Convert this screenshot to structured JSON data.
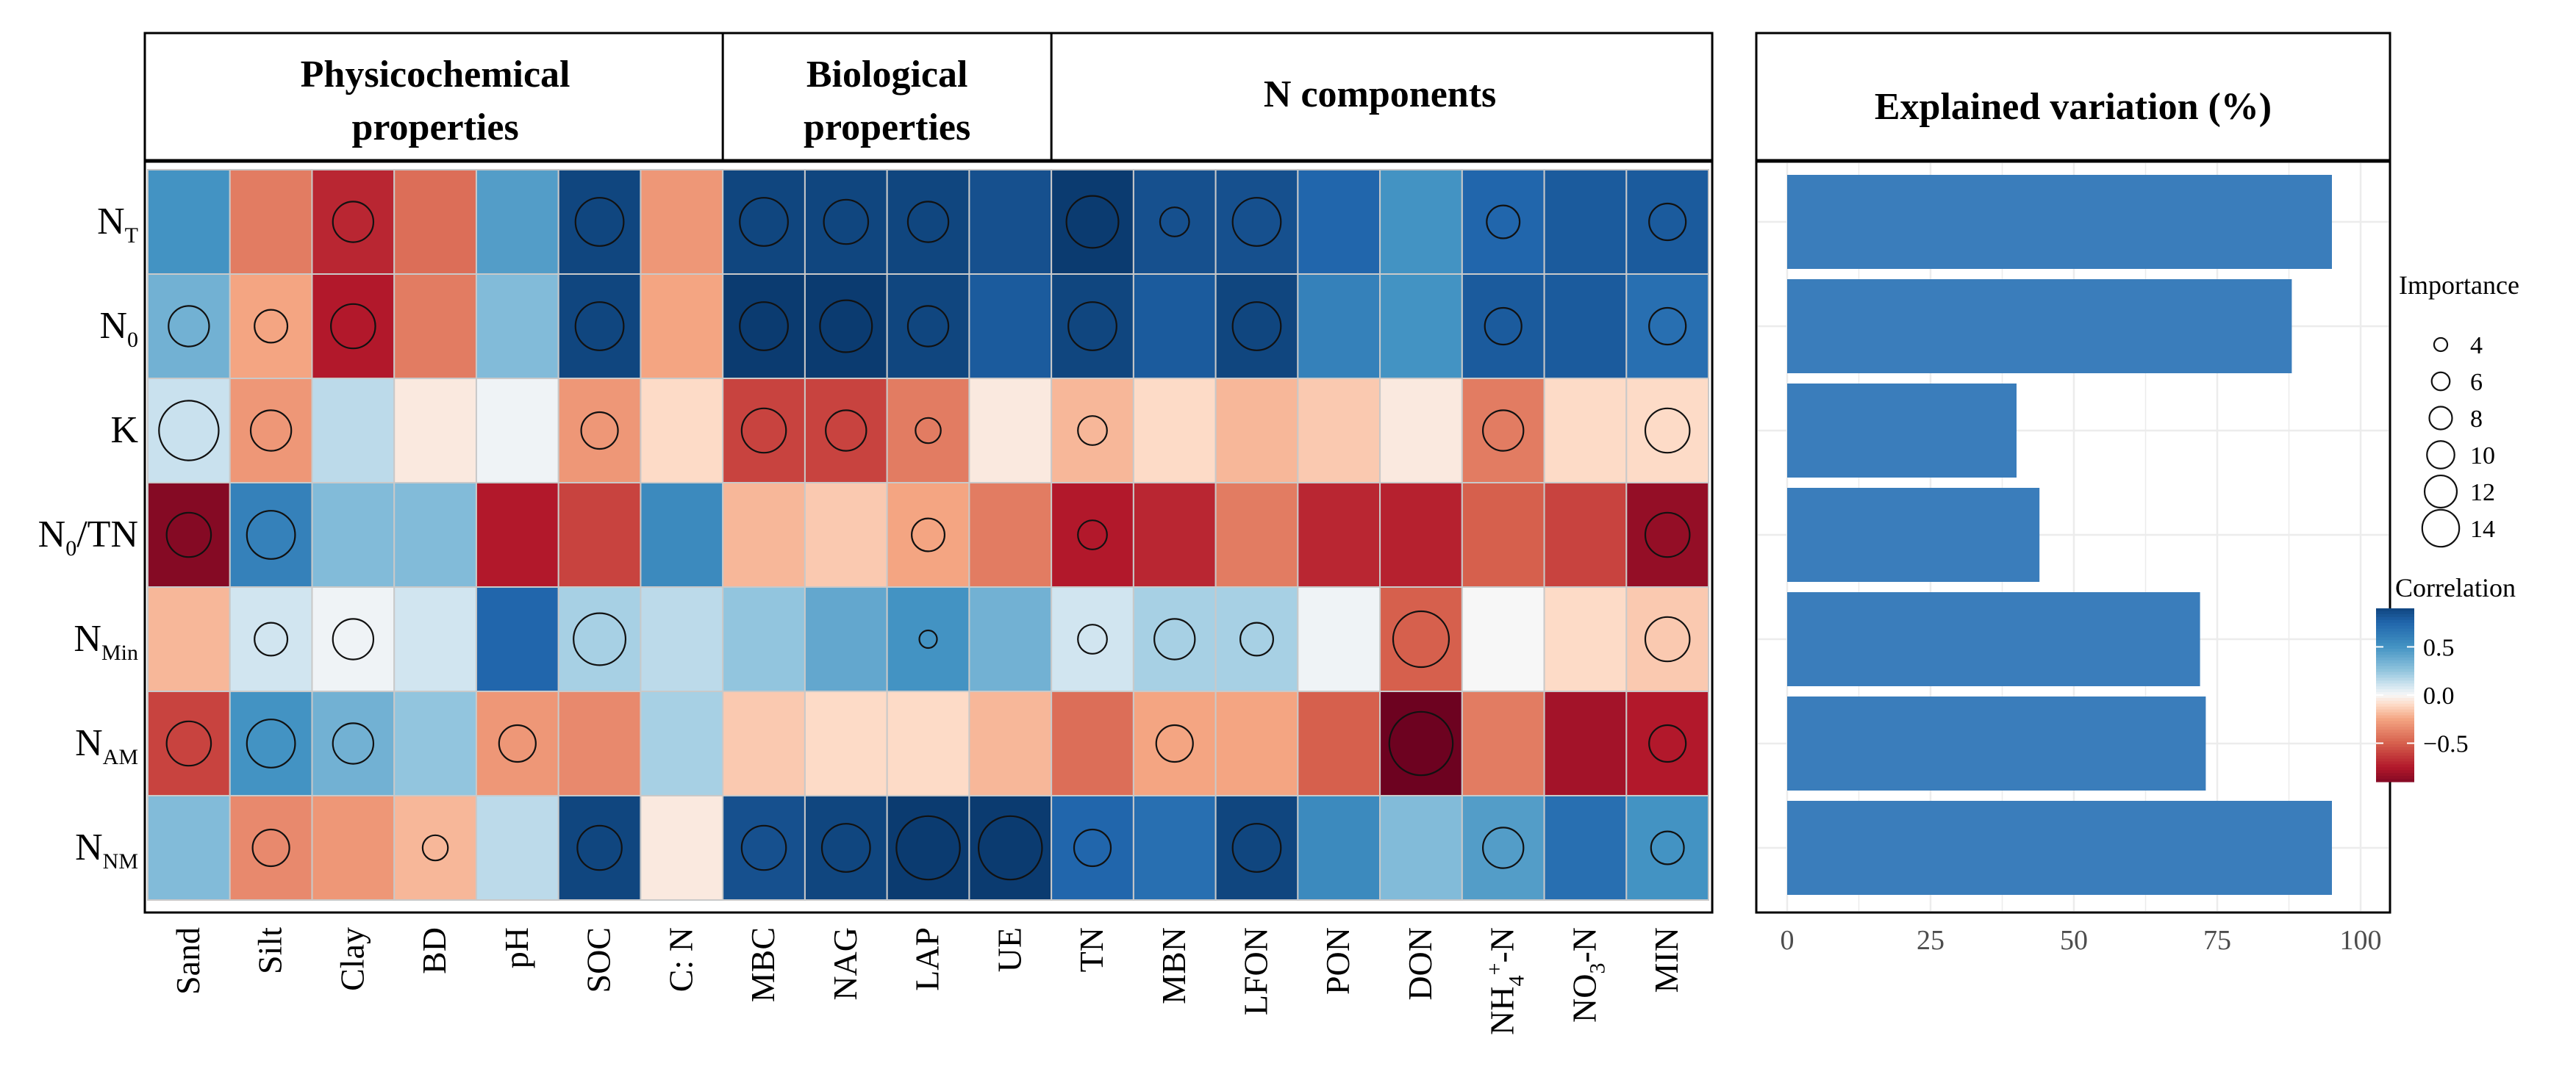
{
  "chart_data": [
    {
      "type": "heatmap",
      "title": "",
      "group_headers": [
        {
          "label_lines": [
            "Physicochemical",
            "properties"
          ],
          "start": 0,
          "end": 7
        },
        {
          "label_lines": [
            "Biological",
            "properties"
          ],
          "start": 7,
          "end": 11
        },
        {
          "label_lines": [
            "N components"
          ],
          "start": 11,
          "end": 19
        }
      ],
      "rows": [
        {
          "base": "N",
          "sub": "T",
          "after": ""
        },
        {
          "base": "N",
          "sub": "0",
          "after": ""
        },
        {
          "base": "K",
          "sub": "",
          "after": ""
        },
        {
          "base": "N",
          "sub": "0",
          "after": "/TN"
        },
        {
          "base": "N",
          "sub": "Min",
          "after": ""
        },
        {
          "base": "N",
          "sub": "AM",
          "after": ""
        },
        {
          "base": "N",
          "sub": "NM",
          "after": ""
        }
      ],
      "columns": [
        {
          "pre": "Sand",
          "sup": "",
          "sub": "",
          "post": ""
        },
        {
          "pre": "Silt",
          "sup": "",
          "sub": "",
          "post": ""
        },
        {
          "pre": "Clay",
          "sup": "",
          "sub": "",
          "post": ""
        },
        {
          "pre": "BD",
          "sup": "",
          "sub": "",
          "post": ""
        },
        {
          "pre": "pH",
          "sup": "",
          "sub": "",
          "post": ""
        },
        {
          "pre": "SOC",
          "sup": "",
          "sub": "",
          "post": ""
        },
        {
          "pre": "C: N",
          "sup": "",
          "sub": "",
          "post": ""
        },
        {
          "pre": "MBC",
          "sup": "",
          "sub": "",
          "post": ""
        },
        {
          "pre": "NAG",
          "sup": "",
          "sub": "",
          "post": ""
        },
        {
          "pre": "LAP",
          "sup": "",
          "sub": "",
          "post": ""
        },
        {
          "pre": "UE",
          "sup": "",
          "sub": "",
          "post": ""
        },
        {
          "pre": "TN",
          "sup": "",
          "sub": "",
          "post": ""
        },
        {
          "pre": "MBN",
          "sup": "",
          "sub": "",
          "post": ""
        },
        {
          "pre": "LFON",
          "sup": "",
          "sub": "",
          "post": ""
        },
        {
          "pre": "PON",
          "sup": "",
          "sub": "",
          "post": ""
        },
        {
          "pre": "DON",
          "sup": "",
          "sub": "",
          "post": ""
        },
        {
          "pre": "NH",
          "sup": "4",
          "sub": "+",
          "post": "-N"
        },
        {
          "pre": "NO",
          "sup": "",
          "sub": "3",
          "post": "-N"
        },
        {
          "pre": "MIN",
          "sup": "",
          "sub": "",
          "post": ""
        }
      ],
      "correlation": [
        [
          0.5,
          -0.4,
          -0.7,
          -0.45,
          0.45,
          0.9,
          -0.3,
          0.9,
          0.9,
          0.9,
          0.85,
          0.95,
          0.85,
          0.85,
          0.75,
          0.5,
          0.75,
          0.8,
          0.8
        ],
        [
          0.35,
          -0.25,
          -0.75,
          -0.4,
          0.3,
          0.9,
          -0.25,
          0.95,
          0.95,
          0.9,
          0.8,
          0.9,
          0.8,
          0.9,
          0.6,
          0.5,
          0.8,
          0.8,
          0.7
        ],
        [
          0.12,
          -0.3,
          0.15,
          -0.05,
          0.02,
          -0.3,
          -0.1,
          -0.6,
          -0.6,
          -0.4,
          -0.05,
          -0.2,
          -0.1,
          -0.2,
          -0.15,
          -0.05,
          -0.4,
          -0.1,
          -0.1
        ],
        [
          -0.9,
          0.6,
          0.3,
          0.3,
          -0.75,
          -0.6,
          0.55,
          -0.2,
          -0.15,
          -0.25,
          -0.4,
          -0.75,
          -0.7,
          -0.4,
          -0.7,
          -0.72,
          -0.5,
          -0.6,
          -0.85
        ],
        [
          -0.2,
          0.1,
          0.02,
          0.1,
          0.75,
          0.2,
          0.15,
          0.25,
          0.4,
          0.5,
          0.35,
          0.1,
          0.2,
          0.2,
          0.02,
          -0.5,
          0.0,
          -0.1,
          -0.15
        ],
        [
          -0.6,
          0.5,
          0.35,
          0.25,
          -0.3,
          -0.35,
          0.2,
          -0.15,
          -0.1,
          -0.1,
          -0.2,
          -0.45,
          -0.25,
          -0.25,
          -0.5,
          -0.98,
          -0.4,
          -0.8,
          -0.75
        ],
        [
          0.3,
          -0.35,
          -0.3,
          -0.2,
          0.15,
          0.9,
          -0.05,
          0.85,
          0.9,
          0.95,
          0.95,
          0.75,
          0.7,
          0.9,
          0.55,
          0.3,
          0.45,
          0.7,
          0.5
        ]
      ],
      "importance": [
        [
          null,
          null,
          9,
          null,
          null,
          11,
          null,
          11,
          10,
          9,
          null,
          12,
          6,
          11,
          null,
          null,
          7,
          null,
          8
        ],
        [
          9,
          7,
          10,
          null,
          null,
          11,
          null,
          11,
          12,
          9,
          null,
          11,
          null,
          11,
          null,
          null,
          8,
          null,
          8
        ],
        [
          14,
          9,
          null,
          null,
          null,
          8,
          null,
          10,
          9,
          5,
          null,
          6,
          null,
          null,
          null,
          null,
          9,
          null,
          10
        ],
        [
          10,
          11,
          null,
          null,
          null,
          null,
          null,
          null,
          null,
          7,
          null,
          6,
          null,
          null,
          null,
          null,
          null,
          null,
          10
        ],
        [
          null,
          7,
          9,
          null,
          null,
          12,
          null,
          null,
          null,
          3,
          null,
          6,
          9,
          7,
          null,
          13,
          null,
          null,
          10
        ],
        [
          10,
          11,
          9,
          null,
          8,
          null,
          null,
          null,
          null,
          null,
          null,
          null,
          8,
          null,
          null,
          15,
          null,
          null,
          8
        ],
        [
          null,
          8,
          null,
          5,
          null,
          10,
          null,
          10,
          11,
          15,
          15,
          8,
          null,
          11,
          null,
          null,
          9,
          null,
          7
        ]
      ],
      "legend": {
        "importance_title": "Importance",
        "importance_values": [
          4,
          6,
          8,
          10,
          12,
          14
        ],
        "correlation_title": "Correlation",
        "correlation_ticks": [
          0.5,
          0.0,
          -0.5
        ],
        "correlation_tick_labels": [
          "0.5",
          "0.0",
          "−0.5"
        ]
      }
    },
    {
      "type": "bar",
      "orientation": "horizontal",
      "title": "Explained variation (%)",
      "categories": [
        "NT",
        "N0",
        "K",
        "N0/TN",
        "NMin",
        "NAM",
        "NNM"
      ],
      "values": [
        95,
        88,
        40,
        44,
        72,
        73,
        95
      ],
      "xlim": [
        0,
        100
      ],
      "xticks": [
        0,
        25,
        50,
        75,
        100
      ],
      "xtick_labels": [
        "0",
        "25",
        "50",
        "75",
        "100"
      ],
      "bar_color": "#3a7dbb",
      "grid": true
    }
  ]
}
